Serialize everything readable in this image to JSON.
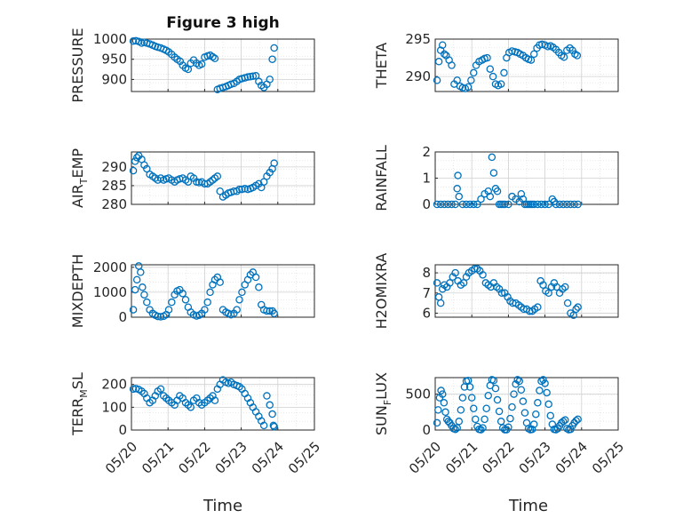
{
  "figure": {
    "title": "Figure 3 high",
    "xlabel": "Time",
    "marker_color": "#0072BD",
    "axis_color": "#262626",
    "grid_color": "#dcdcdc"
  },
  "chart_data": [
    {
      "type": "scatter",
      "ylabel": "PRESSURE",
      "ylabel_sub": "",
      "xlim": [
        0,
        5
      ],
      "ylim": [
        870,
        1000
      ],
      "yticks": [
        900,
        950,
        1000
      ],
      "xtick_labels": [],
      "x": [
        0.05,
        0.12,
        0.2,
        0.28,
        0.35,
        0.42,
        0.5,
        0.58,
        0.65,
        0.72,
        0.8,
        0.88,
        0.95,
        1.02,
        1.1,
        1.18,
        1.25,
        1.33,
        1.4,
        1.48,
        1.55,
        1.62,
        1.7,
        1.78,
        1.85,
        1.92,
        2.0,
        2.08,
        2.15,
        2.22,
        2.28,
        2.35,
        2.42,
        2.5,
        2.58,
        2.65,
        2.72,
        2.8,
        2.88,
        2.95,
        3.02,
        3.1,
        3.18,
        3.25,
        3.32,
        3.4,
        3.48,
        3.55,
        3.62,
        3.7,
        3.78,
        3.85,
        3.9
      ],
      "y": [
        995,
        996,
        994,
        990,
        992,
        990,
        988,
        985,
        982,
        980,
        978,
        975,
        972,
        968,
        962,
        955,
        950,
        945,
        935,
        928,
        925,
        940,
        948,
        940,
        935,
        938,
        955,
        958,
        960,
        956,
        952,
        875,
        878,
        880,
        882,
        885,
        888,
        890,
        895,
        900,
        902,
        904,
        906,
        907,
        908,
        909,
        895,
        885,
        880,
        888,
        900,
        950,
        978
      ]
    },
    {
      "type": "scatter",
      "ylabel": "THETA",
      "ylabel_sub": "",
      "xlim": [
        0,
        5
      ],
      "ylim": [
        288,
        295
      ],
      "yticks": [
        290,
        295
      ],
      "xtick_labels": [],
      "x": [
        0.05,
        0.1,
        0.15,
        0.2,
        0.25,
        0.3,
        0.38,
        0.45,
        0.52,
        0.6,
        0.68,
        0.75,
        0.82,
        0.9,
        0.98,
        1.05,
        1.12,
        1.2,
        1.28,
        1.35,
        1.42,
        1.5,
        1.58,
        1.65,
        1.72,
        1.8,
        1.88,
        1.95,
        2.02,
        2.1,
        2.18,
        2.25,
        2.32,
        2.4,
        2.48,
        2.55,
        2.62,
        2.7,
        2.78,
        2.85,
        2.92,
        3.0,
        3.08,
        3.15,
        3.22,
        3.3,
        3.38,
        3.45,
        3.52,
        3.6,
        3.68,
        3.75,
        3.82,
        3.88
      ],
      "y": [
        289.5,
        292,
        293.5,
        294.2,
        293,
        292.8,
        292.2,
        291.5,
        289,
        289.5,
        288.7,
        288.5,
        288.4,
        288.6,
        289.5,
        290.5,
        291.5,
        292,
        292.2,
        292.4,
        292.5,
        291,
        290,
        289,
        288.8,
        289,
        290.5,
        292.5,
        293.2,
        293.4,
        293.3,
        293.2,
        293,
        292.8,
        292.5,
        292.3,
        292.2,
        293,
        293.8,
        294.2,
        294.3,
        294.2,
        294,
        294.1,
        293.9,
        293.6,
        293.2,
        292.8,
        292.6,
        293.5,
        293.8,
        293.5,
        293,
        292.8
      ]
    },
    {
      "type": "scatter",
      "ylabel": "AIR",
      "ylabel_sub": "T",
      "ylabel_suffix": "EMP",
      "xlim": [
        0,
        5
      ],
      "ylim": [
        280,
        294
      ],
      "yticks": [
        280,
        285,
        290
      ],
      "xtick_labels": [],
      "x": [
        0.05,
        0.1,
        0.15,
        0.2,
        0.28,
        0.35,
        0.42,
        0.5,
        0.58,
        0.65,
        0.72,
        0.8,
        0.88,
        0.95,
        1.02,
        1.1,
        1.18,
        1.25,
        1.32,
        1.4,
        1.48,
        1.55,
        1.62,
        1.7,
        1.78,
        1.85,
        1.92,
        2.0,
        2.08,
        2.15,
        2.22,
        2.28,
        2.35,
        2.42,
        2.5,
        2.58,
        2.65,
        2.72,
        2.8,
        2.88,
        2.95,
        3.02,
        3.1,
        3.18,
        3.25,
        3.32,
        3.4,
        3.48,
        3.55,
        3.62,
        3.7,
        3.78,
        3.85,
        3.9
      ],
      "y": [
        289,
        291.5,
        292.5,
        293,
        292,
        290.5,
        289.5,
        288,
        287.5,
        287,
        286.5,
        287,
        286.5,
        286.8,
        287,
        286.5,
        286,
        286.5,
        286.8,
        287,
        286.5,
        286,
        287.5,
        287,
        286,
        285.8,
        286,
        285.5,
        285.5,
        286,
        286.5,
        287,
        287.5,
        283.5,
        282,
        282.5,
        283,
        283.2,
        283.5,
        283.5,
        284,
        284,
        284.2,
        284,
        284.2,
        284.5,
        285,
        285.5,
        284.5,
        286,
        287.5,
        288.5,
        289.5,
        291
      ]
    },
    {
      "type": "scatter",
      "ylabel": "RAINFALL",
      "ylabel_sub": "",
      "xlim": [
        0,
        5
      ],
      "ylim": [
        0,
        2
      ],
      "yticks": [
        0,
        1,
        2
      ],
      "xtick_labels": [],
      "x": [
        0.05,
        0.15,
        0.25,
        0.35,
        0.45,
        0.55,
        0.6,
        0.62,
        0.65,
        0.75,
        0.85,
        0.95,
        1.05,
        1.15,
        1.25,
        1.35,
        1.45,
        1.5,
        1.55,
        1.6,
        1.65,
        1.7,
        1.75,
        1.8,
        1.85,
        1.9,
        2.0,
        2.1,
        2.2,
        2.3,
        2.35,
        2.4,
        2.45,
        2.5,
        2.55,
        2.6,
        2.65,
        2.7,
        2.8,
        2.9,
        3.0,
        3.1,
        3.2,
        3.25,
        3.3,
        3.4,
        3.5,
        3.6,
        3.7,
        3.8,
        3.9
      ],
      "y": [
        0,
        0,
        0,
        0,
        0,
        0,
        0.6,
        1.1,
        0.3,
        0,
        0,
        0,
        0,
        0,
        0.2,
        0.4,
        0.5,
        0.3,
        1.8,
        1.2,
        0.6,
        0.5,
        0,
        0,
        0,
        0,
        0,
        0.3,
        0.2,
        0.1,
        0.4,
        0.2,
        0,
        0,
        0,
        0,
        0,
        0,
        0,
        0,
        0,
        0,
        0.2,
        0.1,
        0,
        0,
        0,
        0,
        0,
        0,
        0
      ]
    },
    {
      "type": "scatter",
      "ylabel": "MIXDEPTH",
      "ylabel_sub": "",
      "xlim": [
        0,
        5
      ],
      "ylim": [
        0,
        2100
      ],
      "yticks": [
        0,
        1000,
        2000
      ],
      "xtick_labels": [],
      "x": [
        0.05,
        0.1,
        0.15,
        0.2,
        0.25,
        0.3,
        0.35,
        0.42,
        0.5,
        0.58,
        0.65,
        0.72,
        0.8,
        0.88,
        0.95,
        1.02,
        1.1,
        1.18,
        1.25,
        1.32,
        1.4,
        1.48,
        1.55,
        1.62,
        1.7,
        1.78,
        1.85,
        1.92,
        2.0,
        2.08,
        2.15,
        2.22,
        2.28,
        2.35,
        2.42,
        2.5,
        2.58,
        2.65,
        2.72,
        2.8,
        2.88,
        2.95,
        3.02,
        3.1,
        3.18,
        3.25,
        3.32,
        3.4,
        3.48,
        3.55,
        3.62,
        3.7,
        3.78,
        3.85,
        3.9
      ],
      "y": [
        300,
        1100,
        1500,
        2050,
        1800,
        1200,
        900,
        600,
        300,
        150,
        80,
        30,
        20,
        40,
        100,
        300,
        600,
        900,
        1050,
        1100,
        950,
        700,
        400,
        200,
        100,
        50,
        80,
        150,
        300,
        600,
        1000,
        1300,
        1500,
        1600,
        1400,
        300,
        200,
        150,
        100,
        150,
        300,
        700,
        1000,
        1300,
        1500,
        1700,
        1800,
        1600,
        1200,
        500,
        300,
        250,
        250,
        250,
        150
      ]
    },
    {
      "type": "scatter",
      "ylabel": "H2OMIXRA",
      "ylabel_sub": "",
      "xlim": [
        0,
        5
      ],
      "ylim": [
        5.8,
        8.4
      ],
      "yticks": [
        6,
        7,
        8
      ],
      "xtick_labels": [],
      "x": [
        0.05,
        0.1,
        0.15,
        0.2,
        0.25,
        0.32,
        0.4,
        0.48,
        0.55,
        0.62,
        0.7,
        0.78,
        0.85,
        0.92,
        1.0,
        1.08,
        1.15,
        1.22,
        1.3,
        1.38,
        1.45,
        1.52,
        1.6,
        1.68,
        1.75,
        1.82,
        1.9,
        1.98,
        2.05,
        2.12,
        2.2,
        2.28,
        2.35,
        2.42,
        2.5,
        2.58,
        2.65,
        2.72,
        2.8,
        2.88,
        2.95,
        3.02,
        3.1,
        3.18,
        3.25,
        3.32,
        3.4,
        3.48,
        3.55,
        3.62,
        3.7,
        3.78,
        3.85,
        3.9
      ],
      "y": [
        7.5,
        6.8,
        6.5,
        7.2,
        7.4,
        7.3,
        7.5,
        7.8,
        8.0,
        7.6,
        7.4,
        7.5,
        7.8,
        8.0,
        8.1,
        8.2,
        8.2,
        8.1,
        7.9,
        7.5,
        7.4,
        7.3,
        7.5,
        7.3,
        7.2,
        7.0,
        7.0,
        6.8,
        6.6,
        6.5,
        6.5,
        6.4,
        6.3,
        6.2,
        6.2,
        6.1,
        6.1,
        6.2,
        6.3,
        7.6,
        7.4,
        7.1,
        7.0,
        7.3,
        7.5,
        7.3,
        7.0,
        7.2,
        7.3,
        6.5,
        6.0,
        5.9,
        6.2,
        6.3
      ]
    },
    {
      "type": "scatter",
      "ylabel": "TERR",
      "ylabel_sub": "M",
      "ylabel_suffix": "SL",
      "xlim": [
        0,
        5
      ],
      "ylim": [
        0,
        230
      ],
      "yticks": [
        0,
        100,
        200
      ],
      "xtick_labels": [
        "05/20",
        "05/21",
        "05/22",
        "05/23",
        "05/24",
        "05/25"
      ],
      "x": [
        0.05,
        0.12,
        0.2,
        0.28,
        0.35,
        0.42,
        0.5,
        0.58,
        0.65,
        0.72,
        0.8,
        0.88,
        0.95,
        1.02,
        1.1,
        1.18,
        1.25,
        1.32,
        1.4,
        1.48,
        1.55,
        1.62,
        1.7,
        1.78,
        1.85,
        1.92,
        2.0,
        2.08,
        2.15,
        2.22,
        2.28,
        2.35,
        2.42,
        2.5,
        2.58,
        2.65,
        2.72,
        2.8,
        2.88,
        2.95,
        3.02,
        3.1,
        3.18,
        3.25,
        3.32,
        3.4,
        3.48,
        3.55,
        3.62,
        3.7,
        3.78,
        3.85,
        3.88,
        3.9
      ],
      "y": [
        180,
        182,
        178,
        170,
        160,
        140,
        120,
        130,
        150,
        170,
        180,
        150,
        140,
        130,
        120,
        110,
        130,
        150,
        140,
        120,
        110,
        100,
        130,
        140,
        120,
        110,
        120,
        130,
        140,
        150,
        130,
        180,
        200,
        220,
        210,
        205,
        210,
        200,
        195,
        190,
        180,
        160,
        140,
        120,
        100,
        80,
        60,
        40,
        20,
        150,
        110,
        70,
        20,
        15
      ]
    },
    {
      "type": "scatter",
      "ylabel": "SUN",
      "ylabel_sub": "F",
      "ylabel_suffix": "LUX",
      "xlim": [
        0,
        5
      ],
      "ylim": [
        0,
        730
      ],
      "yticks": [
        0,
        500
      ],
      "xtick_labels": [
        "05/20",
        "05/21",
        "05/22",
        "05/23",
        "05/24",
        "05/25"
      ],
      "x": [
        0.05,
        0.08,
        0.12,
        0.16,
        0.2,
        0.24,
        0.28,
        0.32,
        0.36,
        0.4,
        0.45,
        0.5,
        0.55,
        0.6,
        0.65,
        0.7,
        0.75,
        0.8,
        0.85,
        0.9,
        0.95,
        1.0,
        1.05,
        1.1,
        1.15,
        1.2,
        1.25,
        1.3,
        1.35,
        1.4,
        1.45,
        1.5,
        1.55,
        1.6,
        1.65,
        1.7,
        1.75,
        1.8,
        1.85,
        1.9,
        1.95,
        2.0,
        2.05,
        2.1,
        2.15,
        2.2,
        2.25,
        2.3,
        2.35,
        2.4,
        2.45,
        2.5,
        2.55,
        2.6,
        2.65,
        2.7,
        2.75,
        2.8,
        2.85,
        2.9,
        2.95,
        3.0,
        3.05,
        3.1,
        3.15,
        3.2,
        3.25,
        3.3,
        3.35,
        3.4,
        3.45,
        3.5,
        3.55,
        3.6,
        3.65,
        3.7,
        3.75,
        3.8,
        3.85,
        3.9
      ],
      "y": [
        100,
        280,
        450,
        550,
        500,
        380,
        250,
        150,
        120,
        100,
        60,
        20,
        10,
        30,
        120,
        280,
        450,
        600,
        680,
        690,
        600,
        450,
        300,
        150,
        50,
        10,
        5,
        30,
        150,
        300,
        480,
        620,
        700,
        690,
        580,
        420,
        260,
        120,
        30,
        5,
        5,
        40,
        160,
        320,
        500,
        640,
        700,
        680,
        560,
        400,
        240,
        100,
        20,
        5,
        10,
        80,
        220,
        380,
        550,
        680,
        700,
        650,
        520,
        360,
        200,
        80,
        10,
        5,
        20,
        60,
        100,
        120,
        140,
        20,
        5,
        10,
        60,
        100,
        130,
        150
      ]
    }
  ]
}
